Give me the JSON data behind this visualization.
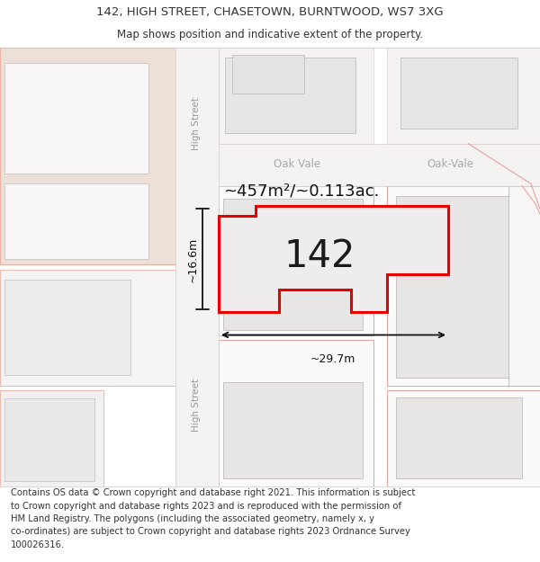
{
  "title_line1": "142, HIGH STREET, CHASETOWN, BURNTWOOD, WS7 3XG",
  "title_line2": "Map shows position and indicative extent of the property.",
  "footer_text": "Contains OS data © Crown copyright and database right 2021. This information is subject\nto Crown copyright and database rights 2023 and is reproduced with the permission of\nHM Land Registry. The polygons (including the associated geometry, namely x, y\nco-ordinates) are subject to Crown copyright and database rights 2023 Ordnance Survey\n100026316.",
  "text_color": "#333333",
  "area_text": "~457m²/~0.113ac.",
  "number_text": "142",
  "dim_width": "~29.7m",
  "dim_height": "~16.6m",
  "street_label": "High Street",
  "road_label_oak1": "Oak Vale",
  "road_label_oak2": "Oak-Vale",
  "salmon_fill": "#ede0d8",
  "salmon_edge": "#e8b0a0",
  "light_pink_edge": "#e8a0a0",
  "gray_fill": "#e8e5e5",
  "gray_edge": "#cccccc",
  "white_fill": "#f8f8f8",
  "road_fill": "#f0eded",
  "prop_fill": "#eeecec",
  "red": "#e80000",
  "black": "#111111",
  "gray_text": "#aaaaaa"
}
